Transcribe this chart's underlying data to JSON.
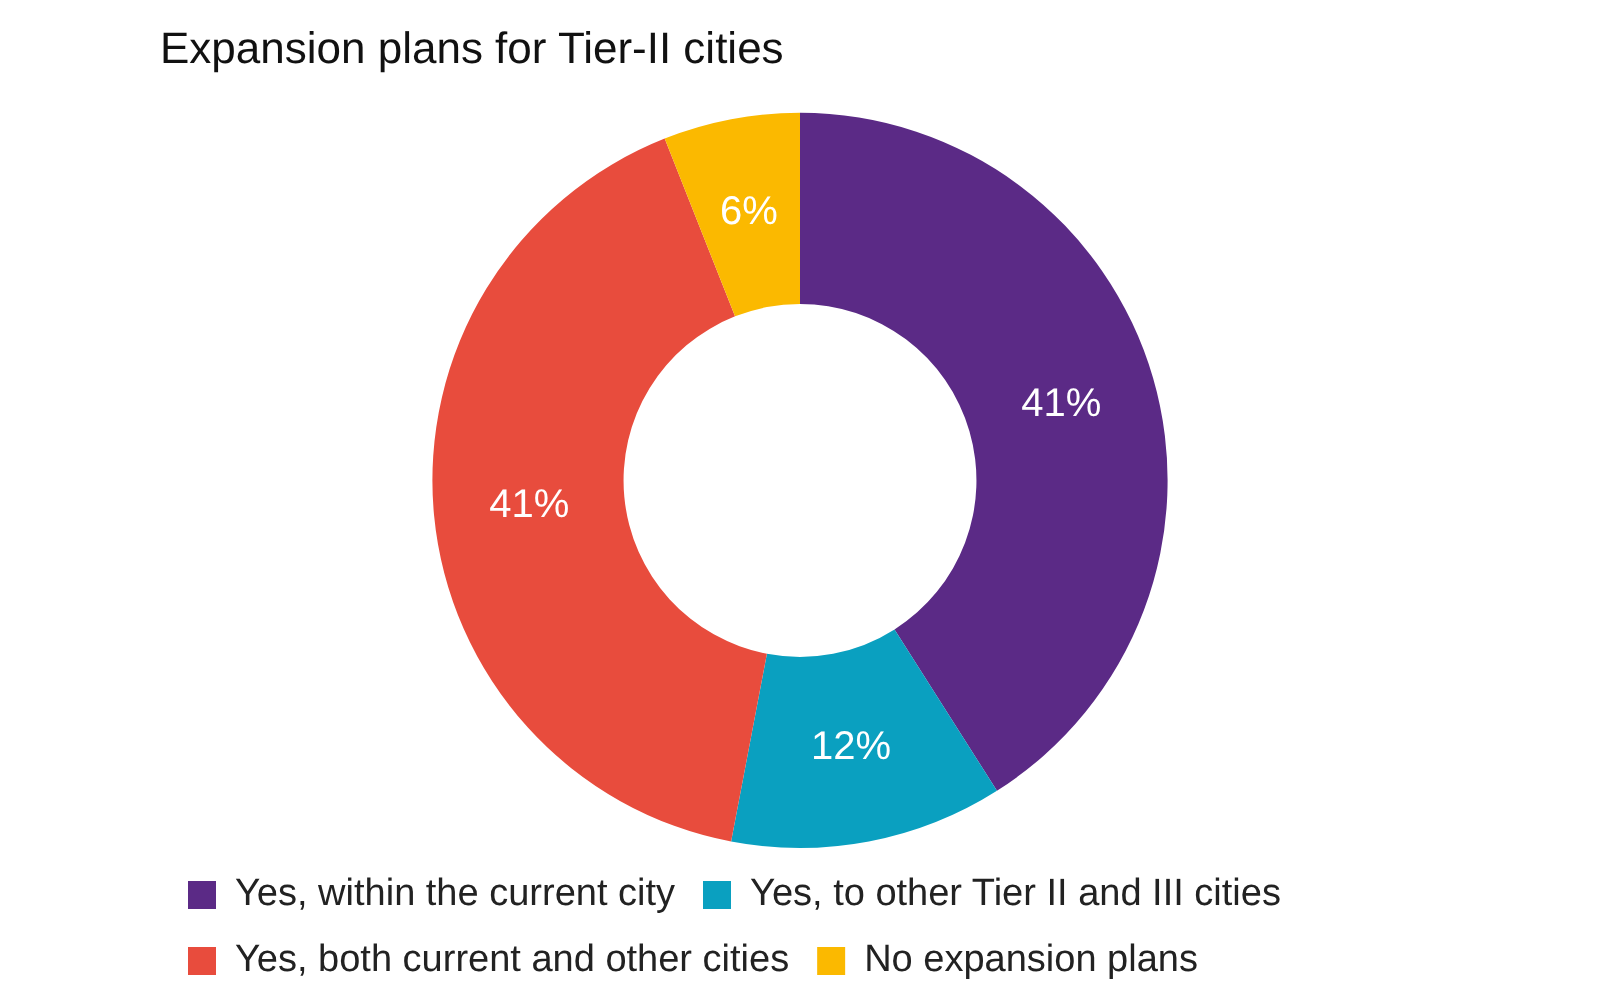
{
  "chart_data": {
    "type": "donut",
    "title": "Expansion plans for Tier-II cities",
    "categories": [
      "Yes, within the current city",
      "Yes, to other Tier II and III cities",
      "Yes, both current and other cities",
      "No expansion plans"
    ],
    "values": [
      41,
      12,
      41,
      6
    ],
    "colors": [
      "#5b2a86",
      "#0aa0c0",
      "#e84c3d",
      "#fbb900"
    ],
    "value_labels": [
      "41%",
      "12%",
      "41%",
      "6%"
    ],
    "legend": "bottom"
  }
}
